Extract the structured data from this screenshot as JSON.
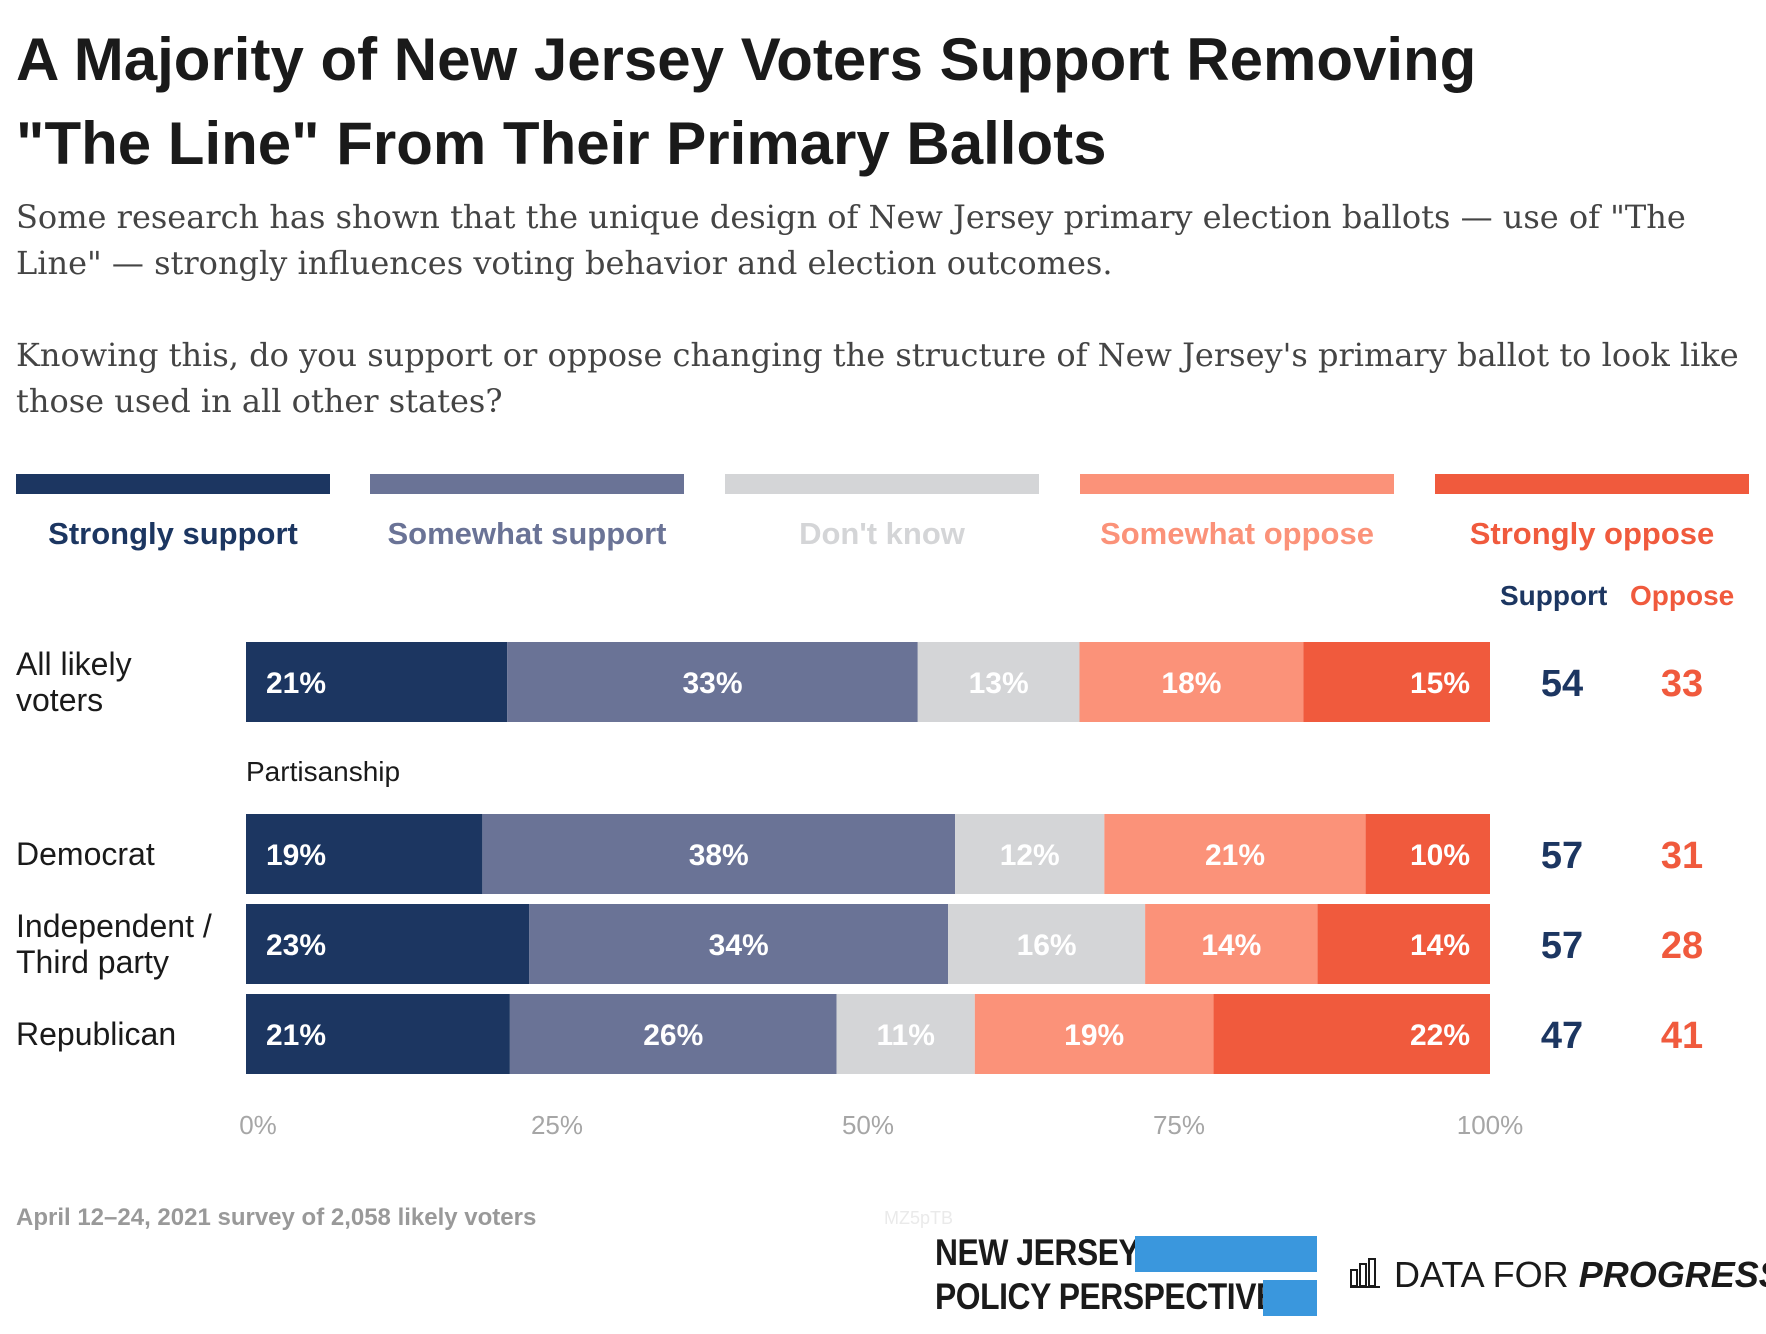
{
  "title_line1": "A Majority of New Jersey Voters Support Removing",
  "title_line2": "\"The Line\" From Their Primary Ballots",
  "subtitle": "Some research has shown that the unique design of New Jersey primary election ballots — use of \"The Line\" — strongly influences voting behavior and election outcomes.",
  "question": "Knowing this, do you support or oppose changing the structure of New Jersey's primary ballot to look like those used in all other states?",
  "colors": {
    "strongly_support": "#1c3661",
    "somewhat_support": "#6a7396",
    "dont_know": "#d4d5d7",
    "somewhat_oppose": "#fb9279",
    "strongly_oppose": "#f05a3d"
  },
  "legend": [
    "Strongly support",
    "Somewhat support",
    "Don't know",
    "Somewhat oppose",
    "Strongly oppose"
  ],
  "column_headers": {
    "support": "Support",
    "oppose": "Oppose"
  },
  "group_label": "Partisanship",
  "row_labels": {
    "all": "All likely voters",
    "dem": "Democrat",
    "ind": "Independent / Third party",
    "rep": "Republican"
  },
  "chart_data": {
    "type": "bar",
    "orientation": "horizontal",
    "stacked": true,
    "categories": [
      "All likely voters",
      "Democrat",
      "Independent / Third party",
      "Republican"
    ],
    "series": [
      {
        "name": "Strongly support",
        "values": [
          21,
          19,
          23,
          21
        ]
      },
      {
        "name": "Somewhat support",
        "values": [
          33,
          38,
          34,
          26
        ]
      },
      {
        "name": "Don't know",
        "values": [
          13,
          12,
          16,
          11
        ]
      },
      {
        "name": "Somewhat oppose",
        "values": [
          18,
          21,
          14,
          19
        ]
      },
      {
        "name": "Strongly oppose",
        "values": [
          15,
          10,
          14,
          22
        ]
      }
    ],
    "segment_labels": [
      [
        "21%",
        "33%",
        "13%",
        "18%",
        "15%"
      ],
      [
        "19%",
        "38%",
        "12%",
        "21%",
        "10%"
      ],
      [
        "23%",
        "34%",
        "16%",
        "14%",
        "14%"
      ],
      [
        "21%",
        "26%",
        "11%",
        "19%",
        "22%"
      ]
    ],
    "support_totals": [
      54,
      57,
      57,
      47
    ],
    "oppose_totals": [
      33,
      31,
      28,
      41
    ],
    "xlim": [
      0,
      100
    ],
    "x_ticks": [
      "0%",
      "25%",
      "50%",
      "75%",
      "100%"
    ],
    "legend_position": "top",
    "grid": false
  },
  "footer": {
    "source": "April 12–24, 2021 survey of 2,058 likely voters",
    "chart_id": "MZ5pTB",
    "njpp_line1": "NEW JERSEY",
    "njpp_line2": "POLICY PERSPECTIVE",
    "dfp_light": "DATA FOR",
    "dfp_bold": "PROGRESS"
  }
}
